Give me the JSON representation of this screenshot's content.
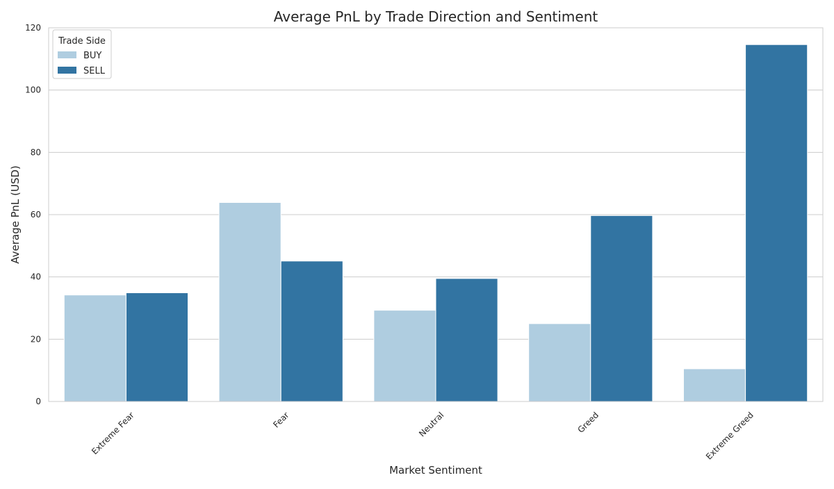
{
  "chart_data": {
    "type": "bar",
    "title": "Average PnL by Trade Direction and Sentiment",
    "xlabel": "Market Sentiment",
    "ylabel": "Average PnL (USD)",
    "categories": [
      "Extreme Fear",
      "Fear",
      "Neutral",
      "Greed",
      "Extreme Greed"
    ],
    "series": [
      {
        "name": "BUY",
        "values": [
          34.2,
          63.9,
          29.3,
          25.0,
          10.5
        ],
        "color": "#afcde0"
      },
      {
        "name": "SELL",
        "values": [
          34.9,
          45.1,
          39.5,
          59.7,
          114.6
        ],
        "color": "#3274a2"
      }
    ],
    "ylim": [
      0,
      120
    ],
    "yticks": [
      0,
      20,
      40,
      60,
      80,
      100,
      120
    ],
    "grid": "horizontal",
    "legend": {
      "title": "Trade Side",
      "placement": "top-left"
    }
  }
}
